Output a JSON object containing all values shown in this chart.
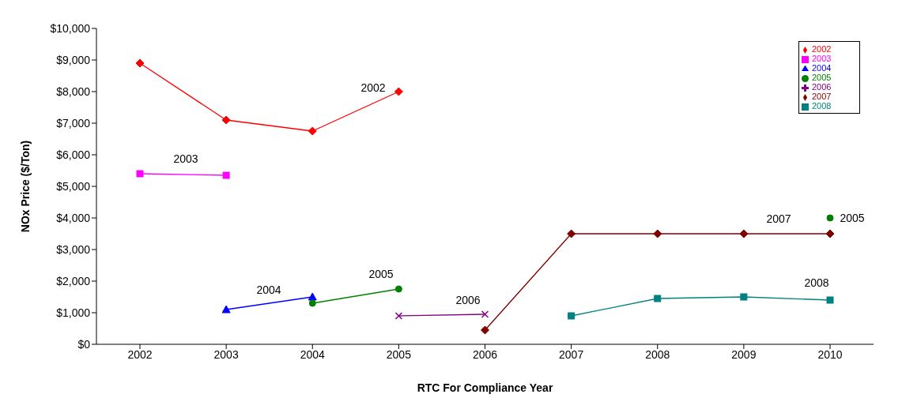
{
  "chart_data": {
    "type": "line",
    "xlabel": "RTC For Compliance Year",
    "ylabel": "NOx Price ($/Ton)",
    "categories": [
      "2002",
      "2003",
      "2004",
      "2005",
      "2006",
      "2007",
      "2008",
      "2009",
      "2010"
    ],
    "series": [
      {
        "name": "2002",
        "color": "#ff0000",
        "marker": "diamond",
        "values": [
          8900,
          7100,
          6750,
          8000,
          null,
          null,
          null,
          null,
          null
        ]
      },
      {
        "name": "2003",
        "color": "#ff00ff",
        "marker": "square",
        "values": [
          5400,
          5350,
          null,
          null,
          null,
          null,
          null,
          null,
          null
        ]
      },
      {
        "name": "2004",
        "color": "#0000ff",
        "marker": "triangle",
        "values": [
          null,
          1100,
          1500,
          null,
          null,
          null,
          null,
          null,
          null
        ]
      },
      {
        "name": "2005",
        "color": "#008000",
        "marker": "circle",
        "values": [
          null,
          null,
          1300,
          1750,
          null,
          null,
          null,
          null,
          4000
        ]
      },
      {
        "name": "2006",
        "color": "#800080",
        "marker": "cross",
        "values": [
          null,
          null,
          null,
          900,
          950,
          null,
          null,
          null,
          null
        ]
      },
      {
        "name": "2007",
        "color": "#800000",
        "marker": "diamond",
        "values": [
          null,
          null,
          null,
          null,
          450,
          3500,
          3500,
          3500,
          3500
        ]
      },
      {
        "name": "2008",
        "color": "#008080",
        "marker": "square",
        "values": [
          null,
          null,
          null,
          null,
          null,
          900,
          1450,
          1500,
          1400
        ]
      }
    ],
    "ylim": [
      0,
      10000
    ],
    "yticks": [
      {
        "value": 0,
        "label": "$0"
      },
      {
        "value": 1000,
        "label": "$1,000"
      },
      {
        "value": 2000,
        "label": "$2,000"
      },
      {
        "value": 3000,
        "label": "$3,000"
      },
      {
        "value": 4000,
        "label": "$4,000"
      },
      {
        "value": 5000,
        "label": "$5,000"
      },
      {
        "value": 6000,
        "label": "$6,000"
      },
      {
        "value": 7000,
        "label": "$7,000"
      },
      {
        "value": 8000,
        "label": "$8,000"
      },
      {
        "value": 9000,
        "label": "$9,000"
      },
      {
        "value": 10000,
        "label": "$10,000"
      }
    ],
    "annotations": [
      "2002",
      "2003",
      "2004",
      "2005",
      "2006",
      "2007",
      "2005",
      "2008"
    ],
    "grid": false,
    "legend": "top right"
  }
}
